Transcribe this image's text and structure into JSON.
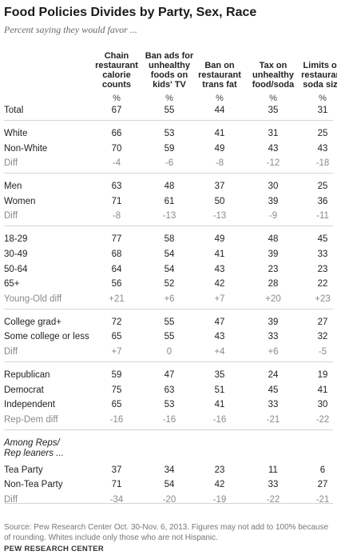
{
  "chart_data": {
    "type": "table",
    "title": "Food Policies Divides by Party, Sex, Race",
    "subtitle": "Percent saying they would favor ...",
    "columns": [
      "Chain restaurant calorie counts",
      "Ban ads for unhealthy foods on kids' TV",
      "Ban on restaurant trans fat",
      "Tax on unhealthy food/soda",
      "Limits on restaurant soda size"
    ],
    "columns_lines": [
      [
        "Chain",
        "restaurant",
        "calorie",
        "counts"
      ],
      [
        "Ban ads for",
        "unhealthy",
        "foods on",
        "kids' TV"
      ],
      [
        "Ban on",
        "restaurant",
        "trans fat"
      ],
      [
        "Tax on",
        "unhealthy",
        "food/soda"
      ],
      [
        "Limits on",
        "restaurant",
        "soda size"
      ]
    ],
    "unit_label": "%",
    "groups": [
      {
        "rows": [
          {
            "label": "Total",
            "values": [
              "67",
              "55",
              "44",
              "35",
              "31"
            ]
          }
        ]
      },
      {
        "rows": [
          {
            "label": "White",
            "values": [
              "66",
              "53",
              "41",
              "31",
              "25"
            ]
          },
          {
            "label": "Non-White",
            "values": [
              "70",
              "59",
              "49",
              "43",
              "43"
            ]
          },
          {
            "label": "Diff",
            "values": [
              "-4",
              "-6",
              "-8",
              "-12",
              "-18"
            ],
            "is_diff": true
          }
        ]
      },
      {
        "rows": [
          {
            "label": "Men",
            "values": [
              "63",
              "48",
              "37",
              "30",
              "25"
            ]
          },
          {
            "label": "Women",
            "values": [
              "71",
              "61",
              "50",
              "39",
              "36"
            ]
          },
          {
            "label": "Diff",
            "values": [
              "-8",
              "-13",
              "-13",
              "-9",
              "-11"
            ],
            "is_diff": true
          }
        ]
      },
      {
        "rows": [
          {
            "label": "18-29",
            "values": [
              "77",
              "58",
              "49",
              "48",
              "45"
            ]
          },
          {
            "label": "30-49",
            "values": [
              "68",
              "54",
              "41",
              "39",
              "33"
            ]
          },
          {
            "label": "50-64",
            "values": [
              "64",
              "54",
              "43",
              "23",
              "23"
            ]
          },
          {
            "label": "65+",
            "values": [
              "56",
              "52",
              "42",
              "28",
              "22"
            ]
          },
          {
            "label": "Young-Old diff",
            "values": [
              "+21",
              "+6",
              "+7",
              "+20",
              "+23"
            ],
            "is_diff": true
          }
        ]
      },
      {
        "rows": [
          {
            "label": "College grad+",
            "values": [
              "72",
              "55",
              "47",
              "39",
              "27"
            ]
          },
          {
            "label": "Some college or less",
            "values": [
              "65",
              "55",
              "43",
              "33",
              "32"
            ]
          },
          {
            "label": "Diff",
            "values": [
              "+7",
              "0",
              "+4",
              "+6",
              "-5"
            ],
            "is_diff": true
          }
        ]
      },
      {
        "rows": [
          {
            "label": "Republican",
            "values": [
              "59",
              "47",
              "35",
              "24",
              "19"
            ]
          },
          {
            "label": "Democrat",
            "values": [
              "75",
              "63",
              "51",
              "45",
              "41"
            ]
          },
          {
            "label": "Independent",
            "values": [
              "65",
              "53",
              "41",
              "33",
              "30"
            ]
          },
          {
            "label": "Rep-Dem diff",
            "values": [
              "-16",
              "-16",
              "-16",
              "-21",
              "-22"
            ],
            "is_diff": true
          }
        ]
      },
      {
        "note_lines": [
          "Among Reps/",
          "Rep leaners ..."
        ],
        "rows": [
          {
            "label": "Tea Party",
            "values": [
              "37",
              "34",
              "23",
              "11",
              "6"
            ]
          },
          {
            "label": "Non-Tea Party",
            "values": [
              "71",
              "54",
              "42",
              "33",
              "27"
            ]
          },
          {
            "label": "Diff",
            "values": [
              "-34",
              "-20",
              "-19",
              "-22",
              "-21"
            ],
            "is_diff": true
          }
        ]
      }
    ],
    "source": "Source: Pew Research Center Oct. 30-Nov. 6, 2013. Figures may not add to 100% because of rounding. Whites include only those who are not Hispanic.",
    "credit": "PEW RESEARCH CENTER",
    "colors": {
      "text": "#222222",
      "diff_text": "#8a8a8a",
      "rule": "#d4d4d4",
      "note": "#777777"
    }
  }
}
